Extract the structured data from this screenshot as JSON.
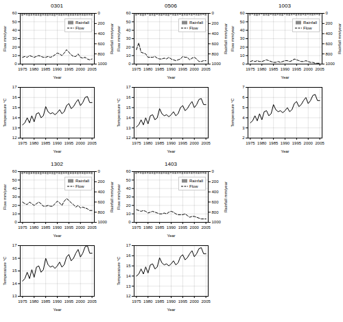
{
  "chart_data": [
    {
      "type": "combo",
      "title": "0301",
      "x_label": "Year",
      "y_label": "Flow mm/year",
      "y2_label": "Rainfall mm/year",
      "x": [
        1975,
        1976,
        1977,
        1978,
        1979,
        1980,
        1981,
        1982,
        1983,
        1984,
        1985,
        1986,
        1987,
        1988,
        1989,
        1990,
        1991,
        1992,
        1993,
        1994,
        1995,
        1996,
        1997,
        1998,
        1999,
        2000,
        2001,
        2002,
        2003,
        2004,
        2005
      ],
      "xlim": [
        1974,
        2006
      ],
      "xticks": [
        1975,
        1980,
        1985,
        1990,
        1995,
        2000,
        2005
      ],
      "ylim": [
        0,
        60
      ],
      "yticks": [
        0,
        10,
        20,
        30,
        40,
        50,
        60
      ],
      "y2lim": [
        1000,
        0
      ],
      "y2ticks": [
        0,
        200,
        400,
        600,
        800,
        1000
      ],
      "grid": true,
      "legend": "upper right",
      "series": [
        {
          "name": "Rainfall",
          "type": "bar",
          "axis": "y2",
          "color": "#888888",
          "values": [
            55,
            42,
            50,
            58,
            52,
            48,
            55,
            53,
            60,
            49,
            52,
            57,
            50,
            55,
            60,
            44,
            53,
            56,
            50,
            48,
            58,
            52,
            54,
            50,
            55,
            48,
            52,
            56,
            50,
            48,
            54
          ]
        },
        {
          "name": "Flow",
          "type": "line",
          "color": "black",
          "line_style": "dashed",
          "values": [
            8,
            9,
            8,
            10,
            9,
            8,
            9,
            10,
            9,
            8,
            8,
            9,
            8,
            9,
            11,
            13,
            12,
            10,
            13,
            17,
            14,
            11,
            9,
            9,
            12,
            8,
            7,
            8,
            6,
            5,
            6
          ]
        }
      ]
    },
    {
      "type": "line",
      "x_label": "Year",
      "y_label": "Temperature °C",
      "x": [
        1975,
        1976,
        1977,
        1978,
        1979,
        1980,
        1981,
        1982,
        1983,
        1984,
        1985,
        1986,
        1987,
        1988,
        1989,
        1990,
        1991,
        1992,
        1993,
        1994,
        1995,
        1996,
        1997,
        1998,
        1999,
        2000,
        2001,
        2002,
        2003,
        2004,
        2005
      ],
      "xlim": [
        1974,
        2006
      ],
      "xticks": [
        1975,
        1980,
        1985,
        1990,
        1995,
        2000,
        2005
      ],
      "ylim": [
        12,
        17
      ],
      "yticks": [
        12,
        13,
        14,
        15,
        16,
        17
      ],
      "grid": true,
      "color": "black",
      "line_style": "solid",
      "values": [
        13.3,
        13.5,
        14.0,
        13.5,
        14.2,
        13.6,
        14.4,
        14.5,
        14.0,
        14.2,
        15.1,
        14.6,
        14.4,
        14.5,
        14.3,
        14.5,
        14.8,
        14.4,
        14.6,
        15.2,
        15.4,
        14.9,
        15.1,
        15.5,
        15.8,
        15.2,
        15.5,
        16.0,
        16.1,
        15.5,
        15.5
      ]
    },
    {
      "type": "combo",
      "title": "0506",
      "x_label": "Year",
      "y_label": "Flow mm/year",
      "y2_label": "Rainfall mm/year",
      "x": [
        1975,
        1976,
        1977,
        1978,
        1979,
        1980,
        1981,
        1982,
        1983,
        1984,
        1985,
        1986,
        1987,
        1988,
        1989,
        1990,
        1991,
        1992,
        1993,
        1994,
        1995,
        1996,
        1997,
        1998,
        1999,
        2000,
        2001,
        2002,
        2003,
        2004,
        2005
      ],
      "xlim": [
        1974,
        2006
      ],
      "xticks": [
        1975,
        1980,
        1985,
        1990,
        1995,
        2000,
        2005
      ],
      "ylim": [
        0,
        60
      ],
      "yticks": [
        0,
        10,
        20,
        30,
        40,
        50,
        60
      ],
      "y2lim": [
        1000,
        0
      ],
      "y2ticks": [
        0,
        200,
        400,
        600,
        800,
        1000
      ],
      "grid": true,
      "legend": "upper right",
      "series": [
        {
          "name": "Rainfall",
          "type": "bar",
          "axis": "y2",
          "color": "#888888",
          "values": [
            50,
            35,
            52,
            58,
            48,
            30,
            55,
            50,
            58,
            40,
            50,
            55,
            45,
            52,
            58,
            35,
            50,
            55,
            48,
            40,
            55,
            48,
            52,
            44,
            52,
            40,
            48,
            52,
            46,
            40,
            50
          ]
        },
        {
          "name": "Flow",
          "type": "line",
          "color": "black",
          "line_style": "dashed",
          "values": [
            17,
            25,
            14,
            13,
            12,
            8,
            8,
            8,
            9,
            7,
            6,
            6,
            7,
            6,
            8,
            6,
            5,
            4,
            5,
            6,
            9,
            8,
            8,
            5,
            7,
            8,
            6,
            3,
            3,
            4,
            4
          ]
        }
      ]
    },
    {
      "type": "line",
      "x_label": "Year",
      "y_label": "Temperature °C",
      "x": [
        1975,
        1976,
        1977,
        1978,
        1979,
        1980,
        1981,
        1982,
        1983,
        1984,
        1985,
        1986,
        1987,
        1988,
        1989,
        1990,
        1991,
        1992,
        1993,
        1994,
        1995,
        1996,
        1997,
        1998,
        1999,
        2000,
        2001,
        2002,
        2003,
        2004,
        2005
      ],
      "xlim": [
        1974,
        2006
      ],
      "xticks": [
        1975,
        1980,
        1985,
        1990,
        1995,
        2000,
        2005
      ],
      "ylim": [
        12,
        17
      ],
      "yticks": [
        12,
        13,
        14,
        15,
        16,
        17
      ],
      "grid": true,
      "color": "black",
      "line_style": "solid",
      "values": [
        13.1,
        13.3,
        13.8,
        13.3,
        14.0,
        13.4,
        14.2,
        14.3,
        13.8,
        14.0,
        14.9,
        14.4,
        14.2,
        14.3,
        14.1,
        14.3,
        14.6,
        14.2,
        14.4,
        15.0,
        15.2,
        14.7,
        14.9,
        15.3,
        15.6,
        15.0,
        15.3,
        15.8,
        15.9,
        15.3,
        15.3
      ]
    },
    {
      "type": "combo",
      "title": "1003",
      "x_label": "Year",
      "y_label": "Flow mm/year",
      "y2_label": "Rainfall mm/year",
      "x": [
        1975,
        1976,
        1977,
        1978,
        1979,
        1980,
        1981,
        1982,
        1983,
        1984,
        1985,
        1986,
        1987,
        1988,
        1989,
        1990,
        1991,
        1992,
        1993,
        1994,
        1995,
        1996,
        1997,
        1998,
        1999,
        2000,
        2001,
        2002,
        2003,
        2004,
        2005
      ],
      "xlim": [
        1974,
        2006
      ],
      "xticks": [
        1975,
        1980,
        1985,
        1990,
        1995,
        2000,
        2005
      ],
      "ylim": [
        0,
        60
      ],
      "yticks": [
        0,
        10,
        20,
        30,
        40,
        50,
        60
      ],
      "y2lim": [
        1000,
        0
      ],
      "y2ticks": [
        0,
        200,
        400,
        600,
        800,
        1000
      ],
      "grid": true,
      "legend": "upper right",
      "series": [
        {
          "name": "Rainfall",
          "type": "bar",
          "axis": "y2",
          "color": "#888888",
          "values": [
            48,
            32,
            50,
            56,
            46,
            28,
            52,
            48,
            56,
            38,
            48,
            52,
            43,
            50,
            56,
            33,
            48,
            52,
            46,
            38,
            52,
            46,
            50,
            42,
            50,
            38,
            46,
            50,
            44,
            38,
            48
          ]
        },
        {
          "name": "Flow",
          "type": "line",
          "color": "black",
          "line_style": "dashed",
          "values": [
            3,
            4,
            3,
            4,
            3,
            3,
            4,
            5,
            4,
            3,
            2,
            2,
            3,
            2,
            3,
            4,
            4,
            3,
            4,
            6,
            5,
            4,
            3,
            3,
            4,
            3,
            2,
            2,
            1,
            1,
            1
          ]
        }
      ]
    },
    {
      "type": "line",
      "x_label": "Year",
      "y_label": "Temperature °C",
      "x": [
        1975,
        1976,
        1977,
        1978,
        1979,
        1980,
        1981,
        1982,
        1983,
        1984,
        1985,
        1986,
        1987,
        1988,
        1989,
        1990,
        1991,
        1992,
        1993,
        1994,
        1995,
        1996,
        1997,
        1998,
        1999,
        2000,
        2001,
        2002,
        2003,
        2004,
        2005
      ],
      "xlim": [
        1974,
        2006
      ],
      "xticks": [
        1975,
        1980,
        1985,
        1990,
        1995,
        2000,
        2005
      ],
      "ylim": [
        2,
        7
      ],
      "yticks": [
        2,
        3,
        4,
        5,
        6,
        7
      ],
      "grid": true,
      "color": "black",
      "line_style": "solid",
      "values": [
        3.5,
        3.7,
        4.2,
        3.7,
        4.4,
        3.8,
        4.6,
        4.7,
        4.2,
        4.4,
        5.3,
        4.8,
        4.6,
        4.7,
        4.5,
        4.7,
        5.0,
        4.6,
        4.8,
        5.4,
        5.6,
        5.1,
        5.3,
        5.7,
        6.0,
        5.4,
        5.7,
        6.2,
        6.3,
        5.7,
        5.7
      ]
    },
    {
      "type": "combo",
      "title": "1302",
      "x_label": "Year",
      "y_label": "Flow mm/year",
      "y2_label": "Rainfall mm/year",
      "x": [
        1975,
        1976,
        1977,
        1978,
        1979,
        1980,
        1981,
        1982,
        1983,
        1984,
        1985,
        1986,
        1987,
        1988,
        1989,
        1990,
        1991,
        1992,
        1993,
        1994,
        1995,
        1996,
        1997,
        1998,
        1999,
        2000,
        2001,
        2002,
        2003,
        2004,
        2005
      ],
      "xlim": [
        1974,
        2006
      ],
      "xticks": [
        1975,
        1980,
        1985,
        1990,
        1995,
        2000,
        2005
      ],
      "ylim": [
        0,
        60
      ],
      "yticks": [
        0,
        10,
        20,
        30,
        40,
        50,
        60
      ],
      "y2lim": [
        1000,
        0
      ],
      "y2ticks": [
        0,
        200,
        400,
        600,
        800,
        1000
      ],
      "grid": true,
      "legend": "upper right",
      "series": [
        {
          "name": "Rainfall",
          "type": "bar",
          "axis": "y2",
          "color": "#888888",
          "values": [
            56,
            44,
            52,
            60,
            54,
            50,
            57,
            55,
            62,
            51,
            54,
            59,
            52,
            57,
            62,
            46,
            55,
            58,
            52,
            50,
            60,
            54,
            56,
            52,
            57,
            50,
            54,
            58,
            52,
            50,
            56
          ]
        },
        {
          "name": "Flow",
          "type": "line",
          "color": "black",
          "line_style": "dashed",
          "values": [
            24,
            22,
            21,
            24,
            22,
            20,
            22,
            24,
            22,
            19,
            19,
            20,
            19,
            19,
            22,
            25,
            23,
            20,
            25,
            28,
            26,
            23,
            21,
            18,
            20,
            17,
            18,
            17,
            16,
            14,
            14
          ]
        }
      ]
    },
    {
      "type": "line",
      "x_label": "Year",
      "y_label": "Temperature °C",
      "x": [
        1975,
        1976,
        1977,
        1978,
        1979,
        1980,
        1981,
        1982,
        1983,
        1984,
        1985,
        1986,
        1987,
        1988,
        1989,
        1990,
        1991,
        1992,
        1993,
        1994,
        1995,
        1996,
        1997,
        1998,
        1999,
        2000,
        2001,
        2002,
        2003,
        2004,
        2005
      ],
      "xlim": [
        1974,
        2006
      ],
      "xticks": [
        1975,
        1980,
        1985,
        1990,
        1995,
        2000,
        2005
      ],
      "ylim": [
        13,
        17
      ],
      "yticks": [
        13,
        14,
        15,
        16,
        17
      ],
      "grid": true,
      "color": "black",
      "line_style": "solid",
      "values": [
        14.2,
        14.4,
        14.9,
        14.4,
        15.1,
        14.5,
        15.3,
        15.4,
        14.9,
        15.1,
        16.0,
        15.5,
        15.3,
        15.4,
        15.2,
        15.4,
        15.7,
        15.3,
        15.5,
        16.1,
        16.3,
        15.8,
        16.0,
        16.4,
        16.7,
        16.1,
        16.4,
        16.9,
        17.0,
        16.4,
        16.4
      ]
    },
    {
      "type": "combo",
      "title": "1403",
      "x_label": "Year",
      "y_label": "Flow mm/year",
      "y2_label": "Rainfall mm/year",
      "x": [
        1975,
        1976,
        1977,
        1978,
        1979,
        1980,
        1981,
        1982,
        1983,
        1984,
        1985,
        1986,
        1987,
        1988,
        1989,
        1990,
        1991,
        1992,
        1993,
        1994,
        1995,
        1996,
        1997,
        1998,
        1999,
        2000,
        2001,
        2002,
        2003,
        2004,
        2005
      ],
      "xlim": [
        1974,
        2006
      ],
      "xticks": [
        1975,
        1980,
        1985,
        1990,
        1995,
        2000,
        2005
      ],
      "ylim": [
        0,
        60
      ],
      "yticks": [
        0,
        10,
        20,
        30,
        40,
        50,
        60
      ],
      "y2lim": [
        1000,
        0
      ],
      "y2ticks": [
        0,
        200,
        400,
        600,
        800,
        1000
      ],
      "grid": true,
      "legend": "upper right",
      "series": [
        {
          "name": "Rainfall",
          "type": "bar",
          "axis": "y2",
          "color": "#888888",
          "values": [
            52,
            40,
            48,
            56,
            50,
            46,
            53,
            51,
            58,
            47,
            50,
            55,
            48,
            53,
            58,
            42,
            51,
            54,
            48,
            46,
            56,
            50,
            52,
            48,
            53,
            46,
            50,
            54,
            48,
            46,
            52
          ]
        },
        {
          "name": "Flow",
          "type": "line",
          "color": "black",
          "line_style": "dashed",
          "values": [
            15,
            14,
            13,
            14,
            13,
            11,
            12,
            13,
            12,
            11,
            10,
            10,
            11,
            10,
            12,
            13,
            12,
            10,
            9,
            9,
            9,
            10,
            8,
            6,
            7,
            7,
            6,
            5,
            4,
            4,
            4
          ]
        }
      ]
    },
    {
      "type": "line",
      "x_label": "Year",
      "y_label": "Temperature °C",
      "x": [
        1975,
        1976,
        1977,
        1978,
        1979,
        1980,
        1981,
        1982,
        1983,
        1984,
        1985,
        1986,
        1987,
        1988,
        1989,
        1990,
        1991,
        1992,
        1993,
        1994,
        1995,
        1996,
        1997,
        1998,
        1999,
        2000,
        2001,
        2002,
        2003,
        2004,
        2005
      ],
      "xlim": [
        1974,
        2006
      ],
      "xticks": [
        1975,
        1980,
        1985,
        1990,
        1995,
        2000,
        2005
      ],
      "ylim": [
        12,
        17
      ],
      "yticks": [
        12,
        13,
        14,
        15,
        16,
        17
      ],
      "grid": true,
      "color": "black",
      "line_style": "solid",
      "values": [
        14.0,
        14.2,
        14.7,
        14.2,
        14.9,
        14.3,
        15.1,
        15.2,
        14.7,
        14.9,
        15.8,
        15.3,
        15.1,
        15.2,
        15.0,
        15.2,
        15.5,
        15.1,
        15.3,
        15.9,
        16.1,
        15.6,
        15.8,
        16.2,
        16.5,
        15.9,
        16.2,
        16.7,
        16.8,
        16.2,
        16.2
      ]
    }
  ]
}
